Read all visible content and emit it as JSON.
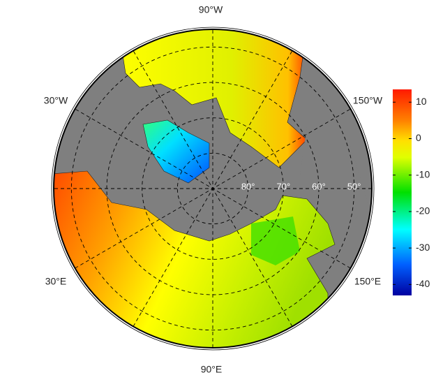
{
  "chart_data": {
    "type": "polar-map",
    "lon_labels": [
      "90°W",
      "30°W",
      "150°W",
      "30°E",
      "150°E",
      "90°E"
    ],
    "lat_labels": [
      {
        "value": 80,
        "label": "80°"
      },
      {
        "value": 70,
        "label": "70°"
      },
      {
        "value": 60,
        "label": "60°"
      },
      {
        "value": 50,
        "label": "50°"
      }
    ],
    "latlim": [
      45,
      90
    ],
    "colorbar_lim": [
      -43,
      13.5
    ],
    "colorbar_ticks": [
      10,
      0,
      -10,
      -20,
      -30,
      -40
    ]
  }
}
